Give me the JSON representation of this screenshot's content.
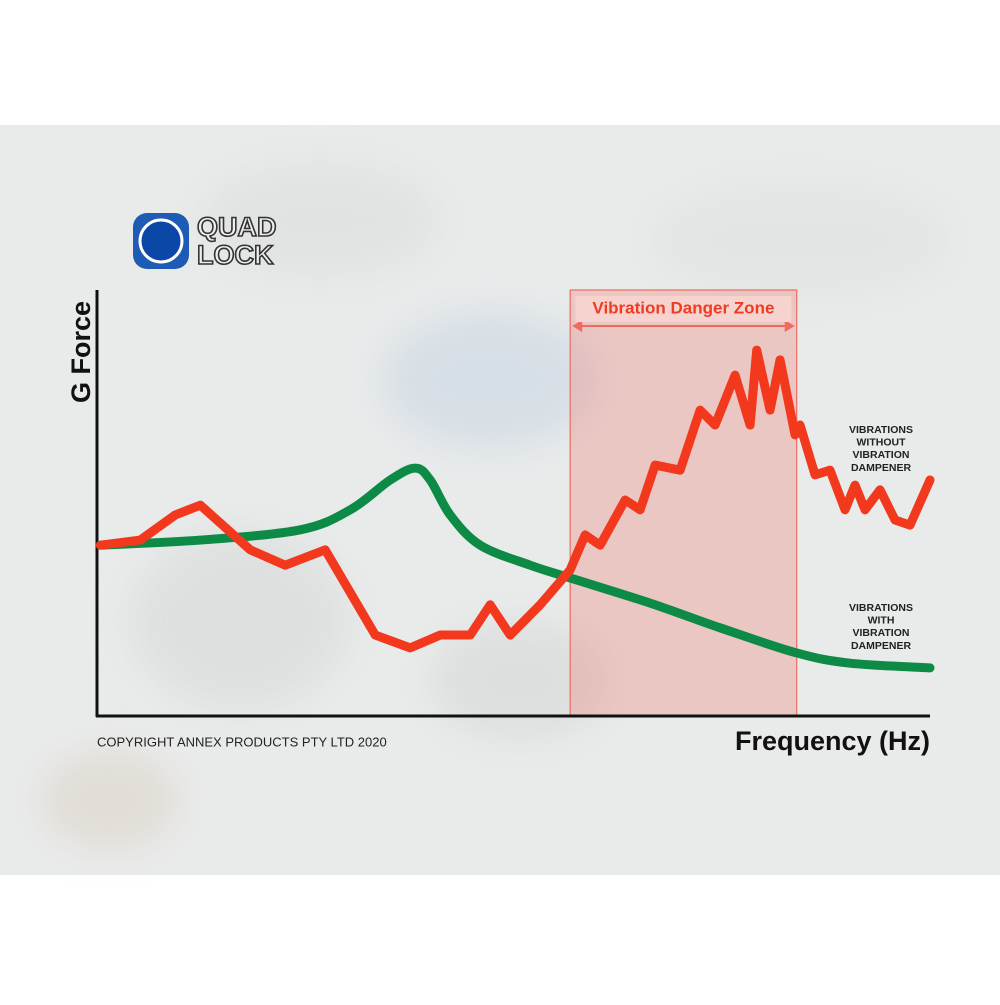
{
  "chart_data": {
    "type": "line",
    "logo": [
      "QUAD",
      "LOCK"
    ],
    "ylabel": "G Force",
    "xlabel": "Frequency (Hz)",
    "footer": "COPYRIGHT ANNEX PRODUCTS PTY LTD 2020",
    "zone": {
      "label": "Vibration Danger Zone",
      "range": [
        56.8,
        84
      ],
      "color": "#f06a5e"
    },
    "xlim": [
      0,
      100
    ],
    "ylim": [
      0,
      100
    ],
    "series": [
      {
        "name": [
          "VIBRATIONS",
          "WITHOUT",
          "VIBRATION",
          "DAMPENER"
        ],
        "color": "#f2381d",
        "x": [
          0.4,
          5.2,
          9.4,
          12.4,
          18.4,
          22.6,
          27.4,
          33.4,
          37.6,
          41.2,
          44.8,
          47.2,
          49.6,
          53.2,
          56.8,
          58.6,
          60.4,
          63.4,
          65.2,
          67.0,
          70.0,
          72.4,
          74.2,
          76.6,
          78.4,
          79.2,
          80.8,
          82.0,
          83.8,
          84.4,
          86.2,
          88.0,
          89.8,
          91.0,
          92.2,
          94.0,
          95.8,
          97.6,
          100
        ],
        "values": [
          40.1,
          41.3,
          47.2,
          49.5,
          39.0,
          35.4,
          39.0,
          19.0,
          16.0,
          19.0,
          19.0,
          26.1,
          19.0,
          26.1,
          34.3,
          42.5,
          40.1,
          50.7,
          48.4,
          58.9,
          57.7,
          71.8,
          68.3,
          80.0,
          68.3,
          85.9,
          71.8,
          83.6,
          66.0,
          68.3,
          56.6,
          57.7,
          48.4,
          54.2,
          48.4,
          53.1,
          46.0,
          44.8,
          55.4
        ]
      },
      {
        "name": [
          "VIBRATIONS",
          "WITH",
          "VIBRATION",
          "DAMPENER"
        ],
        "color": "#0e8a47",
        "smooth": true,
        "x": [
          0.4,
          12.4,
          24.4,
          30.4,
          35.2,
          38.2,
          40.0,
          42.4,
          46.0,
          52.0,
          56.8,
          66.4,
          74.8,
          84.0,
          90.4,
          100
        ],
        "values": [
          40.1,
          41.3,
          43.7,
          48.4,
          55.4,
          58.2,
          55.4,
          47.2,
          40.1,
          35.4,
          32.4,
          26.5,
          20.7,
          14.8,
          12.4,
          11.3
        ]
      }
    ]
  }
}
